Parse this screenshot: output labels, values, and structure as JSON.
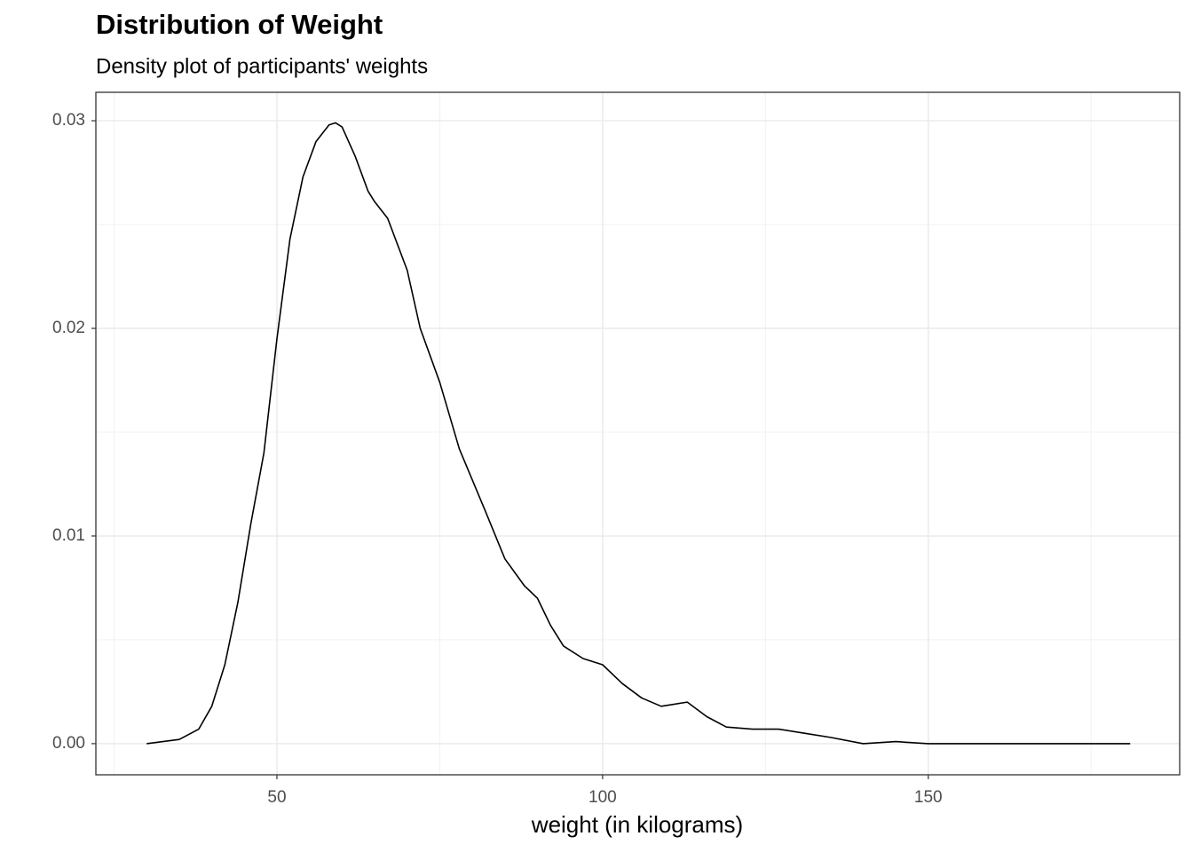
{
  "chart_data": {
    "type": "line",
    "title": "Distribution of Weight",
    "subtitle": "Density plot of participants' weights",
    "x_label": "weight (in kilograms)",
    "x": [
      30,
      35,
      38,
      40,
      42,
      44,
      46,
      48,
      50,
      52,
      54,
      56,
      58,
      59,
      60,
      62,
      64,
      65,
      67,
      70,
      72,
      75,
      78,
      80,
      82,
      85,
      88,
      90,
      92,
      94,
      97,
      100,
      103,
      106,
      109,
      113,
      116,
      119,
      123,
      127,
      131,
      135,
      140,
      145,
      150,
      160,
      170,
      181
    ],
    "values": [
      0.0,
      0.0002,
      0.0007,
      0.0018,
      0.0038,
      0.0068,
      0.0106,
      0.014,
      0.0195,
      0.0243,
      0.0273,
      0.029,
      0.0298,
      0.0299,
      0.0297,
      0.0283,
      0.0266,
      0.0261,
      0.0253,
      0.0228,
      0.02,
      0.0174,
      0.0142,
      0.0127,
      0.0112,
      0.0089,
      0.0076,
      0.007,
      0.0057,
      0.0047,
      0.0041,
      0.0038,
      0.0029,
      0.0022,
      0.0018,
      0.002,
      0.0013,
      0.0008,
      0.0007,
      0.0007,
      0.0005,
      0.0003,
      0.0,
      0.0001,
      0.0,
      0.0,
      0.0,
      0.0
    ],
    "color": "#000000",
    "xlim": [
      22.2,
      188.6
    ],
    "xticks": [
      50,
      100,
      150
    ],
    "ylim": [
      -0.0015,
      0.03137
    ],
    "yticks": [
      {
        "value": 0,
        "label": "0.00"
      },
      {
        "value": 0.01,
        "label": "0.01"
      },
      {
        "value": 0.02,
        "label": "0.02"
      },
      {
        "value": 0.03,
        "label": "0.03"
      }
    ],
    "grid": true
  }
}
